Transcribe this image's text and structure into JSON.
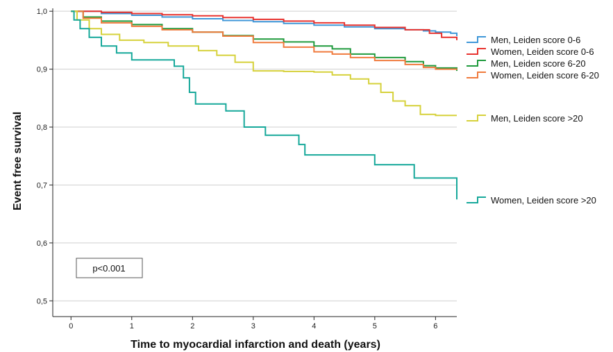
{
  "chart_data": {
    "type": "line",
    "xlabel": "Time to myocardial infarction and death (years)",
    "ylabel": "Event free survival",
    "xlim": [
      -0.3,
      6.35
    ],
    "ylim": [
      0.48,
      1.005
    ],
    "x_ticks": [
      0,
      1,
      2,
      3,
      4,
      5,
      6
    ],
    "y_ticks": [
      0.5,
      0.6,
      0.7,
      0.8,
      0.9,
      1.0
    ],
    "y_tick_labels": [
      "0,5",
      "0,6",
      "0,7",
      "0,8",
      "0,9",
      "1,0"
    ],
    "grid": "horizontal",
    "legend": "right",
    "annotation": "p<0.001",
    "series": [
      {
        "name": "Men, Leiden score 0-6",
        "color": "#3f97d8",
        "x": [
          0,
          0.5,
          1,
          1.5,
          2,
          2.5,
          3,
          3.5,
          4,
          4.5,
          5,
          5.5,
          5.8,
          6,
          6.25,
          6.35
        ],
        "y": [
          1.0,
          0.996,
          0.993,
          0.99,
          0.987,
          0.984,
          0.982,
          0.979,
          0.976,
          0.973,
          0.97,
          0.968,
          0.966,
          0.964,
          0.962,
          0.957
        ]
      },
      {
        "name": "Women, Leiden score 0-6",
        "color": "#e8322e",
        "x": [
          0,
          0.5,
          1,
          1.5,
          2,
          2.5,
          3,
          3.5,
          4,
          4.5,
          5,
          5.5,
          5.9,
          6.1,
          6.35
        ],
        "y": [
          1.0,
          0.998,
          0.996,
          0.994,
          0.992,
          0.989,
          0.986,
          0.983,
          0.98,
          0.976,
          0.972,
          0.968,
          0.962,
          0.955,
          0.95
        ]
      },
      {
        "name": "Men, Leiden score 6-20",
        "color": "#1e9a3c",
        "x": [
          0,
          0.2,
          0.5,
          1,
          1.5,
          2,
          2.5,
          3,
          3.5,
          4,
          4.3,
          4.6,
          5,
          5.5,
          5.8,
          6,
          6.35
        ],
        "y": [
          1.0,
          0.99,
          0.983,
          0.977,
          0.97,
          0.964,
          0.958,
          0.952,
          0.947,
          0.94,
          0.935,
          0.926,
          0.92,
          0.913,
          0.906,
          0.902,
          0.897
        ]
      },
      {
        "name": "Women, Leiden score 6-20",
        "color": "#f07a3c",
        "x": [
          0,
          0.2,
          0.5,
          1,
          1.5,
          2,
          2.5,
          3,
          3.5,
          4,
          4.3,
          4.6,
          5,
          5.5,
          5.8,
          6,
          6.35
        ],
        "y": [
          1.0,
          0.988,
          0.98,
          0.974,
          0.968,
          0.964,
          0.957,
          0.946,
          0.938,
          0.93,
          0.926,
          0.92,
          0.915,
          0.908,
          0.903,
          0.9,
          0.899
        ]
      },
      {
        "name": "Men, Leiden score >20",
        "color": "#d6d13a",
        "x": [
          0,
          0.1,
          0.3,
          0.5,
          0.8,
          1.2,
          1.6,
          2.1,
          2.4,
          2.7,
          3,
          3.5,
          4,
          4.3,
          4.6,
          4.9,
          5.1,
          5.3,
          5.5,
          5.75,
          6,
          6.35
        ],
        "y": [
          1.0,
          0.985,
          0.97,
          0.96,
          0.95,
          0.946,
          0.94,
          0.932,
          0.924,
          0.912,
          0.897,
          0.896,
          0.895,
          0.89,
          0.883,
          0.875,
          0.86,
          0.845,
          0.837,
          0.822,
          0.82,
          0.82
        ]
      },
      {
        "name": "Women, Leiden score >20",
        "color": "#16a89a",
        "x": [
          0,
          0.05,
          0.15,
          0.3,
          0.5,
          0.75,
          1.0,
          1.7,
          1.85,
          1.95,
          2.05,
          2.55,
          2.85,
          3.2,
          3.75,
          3.85,
          5.0,
          5.65,
          6.35
        ],
        "y": [
          1.0,
          0.985,
          0.97,
          0.955,
          0.94,
          0.928,
          0.916,
          0.905,
          0.885,
          0.86,
          0.84,
          0.828,
          0.8,
          0.786,
          0.77,
          0.752,
          0.735,
          0.712,
          0.675
        ]
      }
    ]
  }
}
